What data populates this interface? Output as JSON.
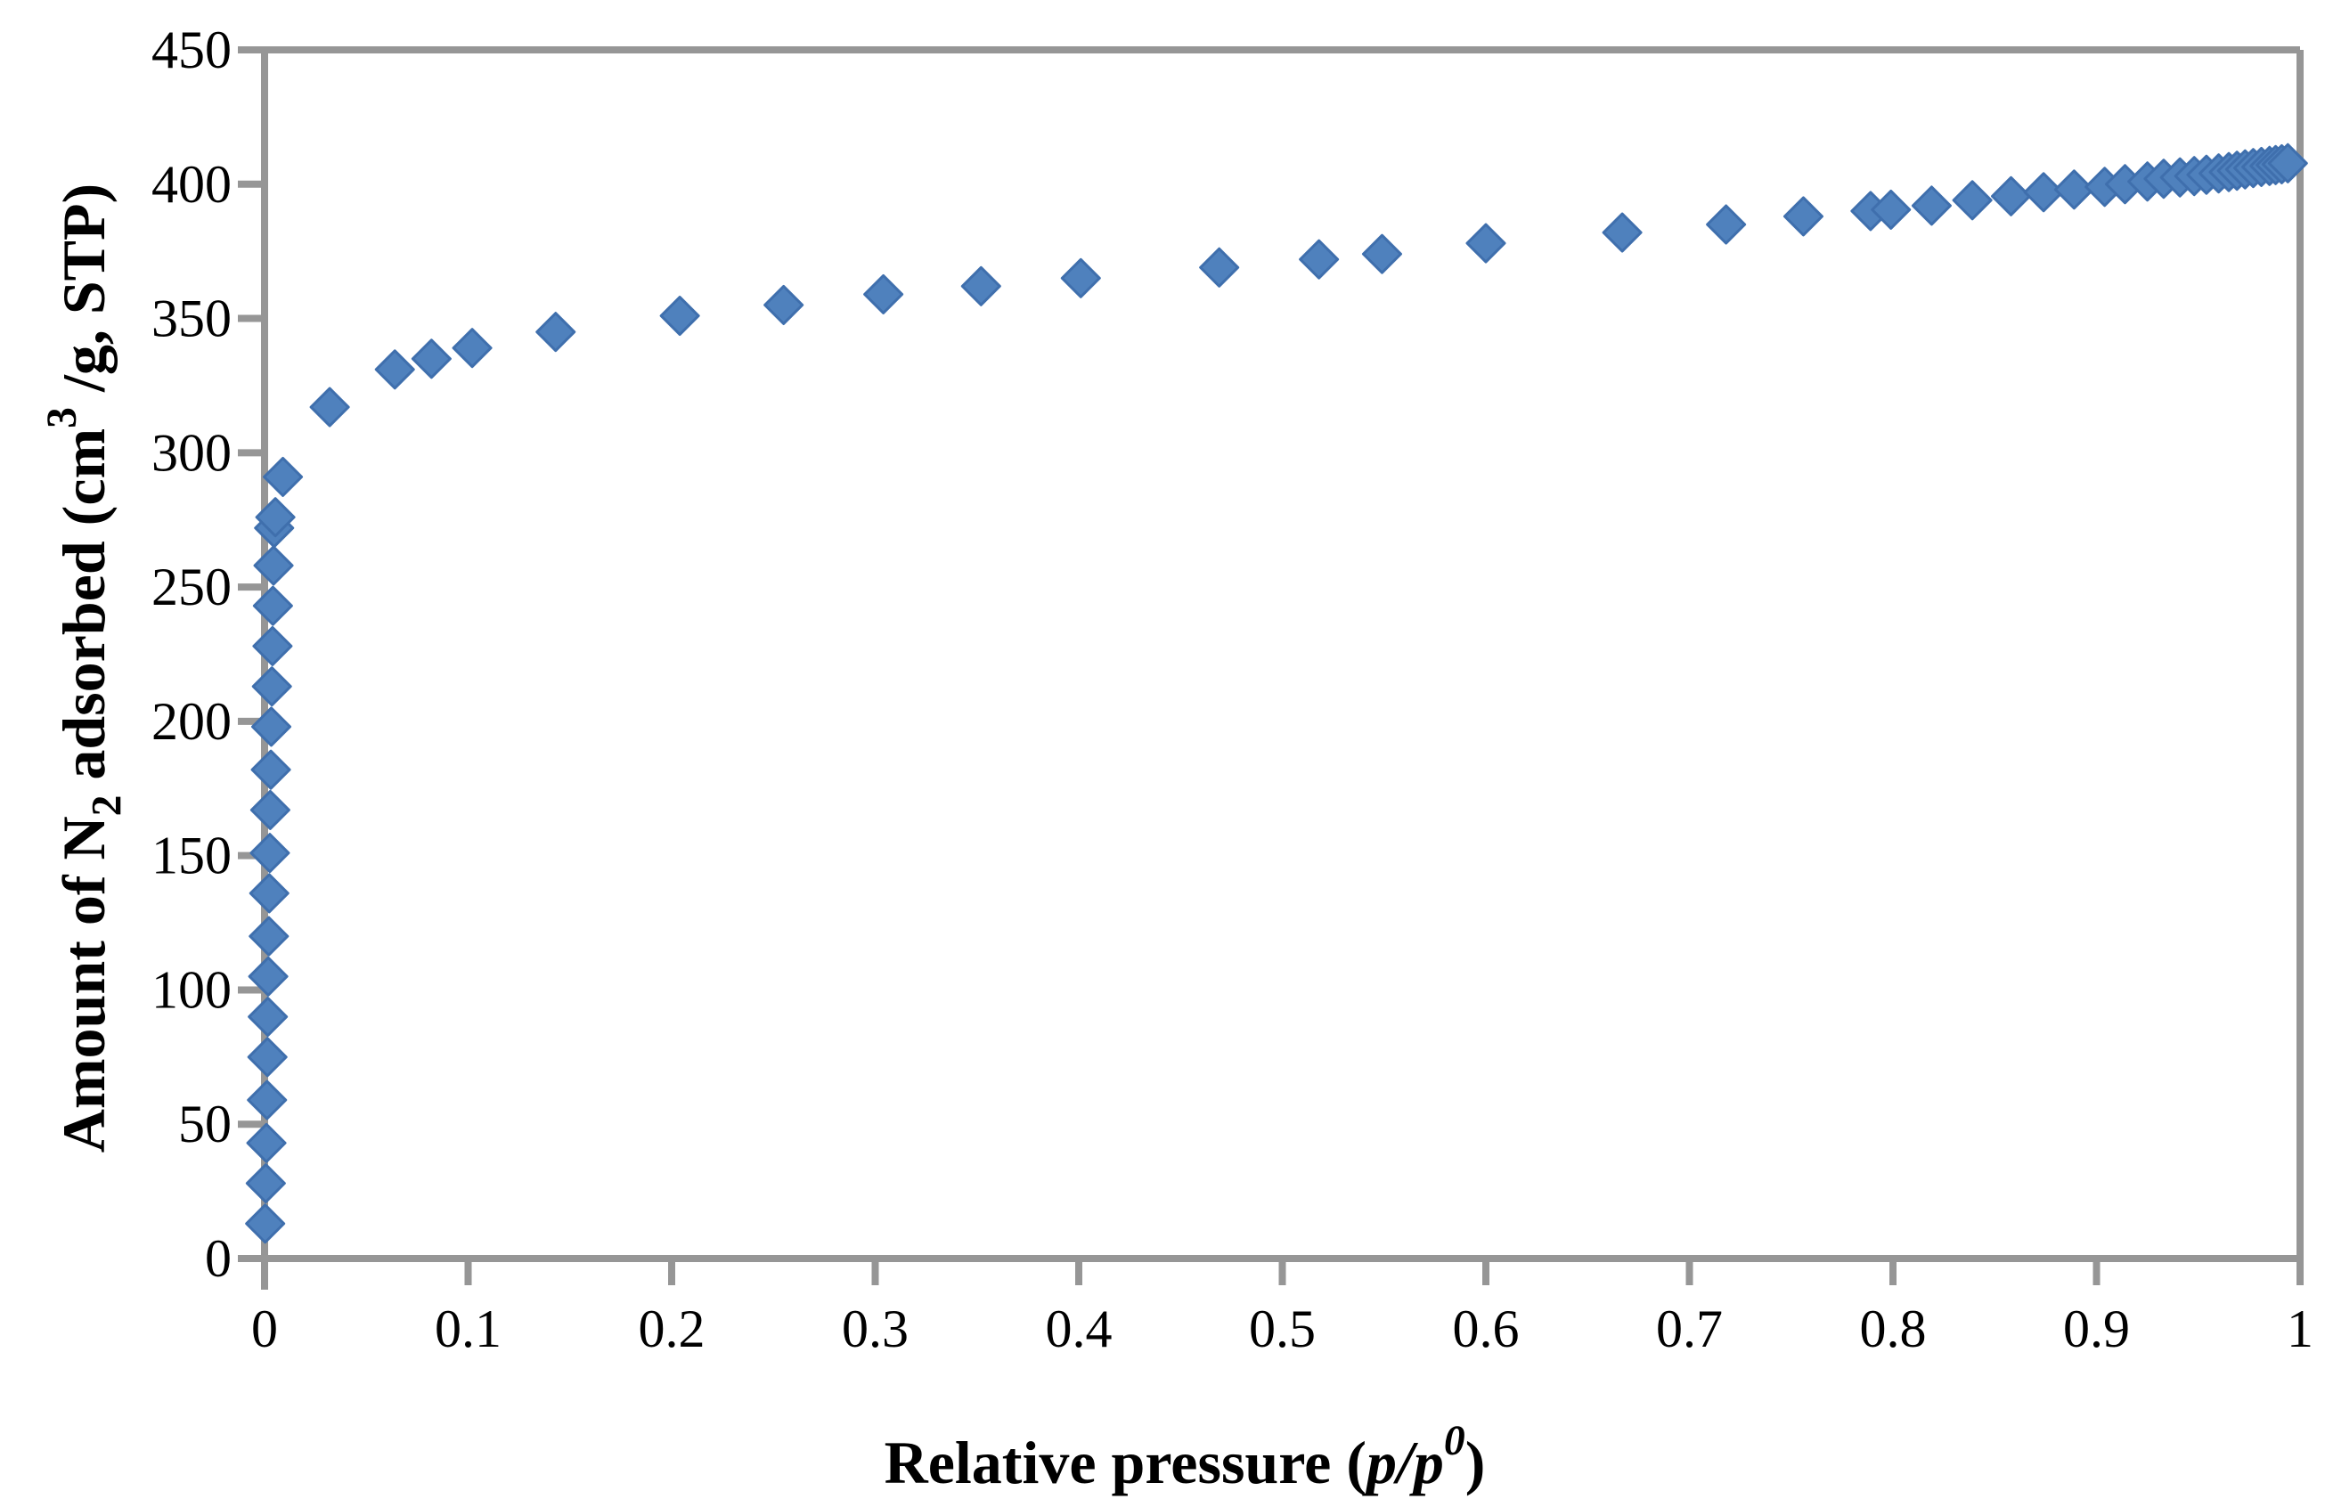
{
  "chart_data": {
    "type": "scatter",
    "title": "",
    "xlabel": "Relative pressure (p/p0)",
    "ylabel": "Amount of N2 adsorbed (cm3 /g, STP)",
    "xlabel_parts": {
      "prefix": "Relative pressure (",
      "italic_body": "p/p",
      "superscript": "0",
      "suffix": ")"
    },
    "ylabel_parts": {
      "part1": "Amount of N",
      "subscript": "2",
      "part2": " adsorbed  (cm",
      "superscript": "3",
      "part3": " /g, STP)"
    },
    "xlim": [
      0,
      1
    ],
    "ylim": [
      0,
      450
    ],
    "x_tick_labels": [
      "0",
      "0.1",
      "0.2",
      "0.3",
      "0.4",
      "0.5",
      "0.6",
      "0.7",
      "0.8",
      "0.9",
      "1"
    ],
    "x_tick_values": [
      0,
      0.1,
      0.2,
      0.3,
      0.4,
      0.5,
      0.6,
      0.7,
      0.8,
      0.9,
      1
    ],
    "y_tick_labels": [
      "0",
      "50",
      "100",
      "150",
      "200",
      "250",
      "300",
      "350",
      "400",
      "450"
    ],
    "y_tick_values": [
      0,
      50,
      100,
      150,
      200,
      250,
      300,
      350,
      400,
      450
    ],
    "grid": false,
    "legend": "none",
    "marker_shape": "diamond",
    "colors": {
      "marker_fill": "#4f81bd",
      "marker_stroke": "#3f6fad",
      "axis": "#969696",
      "text": "#000000",
      "background": "#ffffff"
    },
    "points": [
      [
        0.0003,
        13
      ],
      [
        0.0006,
        28
      ],
      [
        0.0009,
        43
      ],
      [
        0.0012,
        59
      ],
      [
        0.0014,
        75
      ],
      [
        0.0016,
        90
      ],
      [
        0.0018,
        105
      ],
      [
        0.0021,
        120
      ],
      [
        0.0023,
        136
      ],
      [
        0.0026,
        151
      ],
      [
        0.0028,
        167
      ],
      [
        0.0031,
        182
      ],
      [
        0.0033,
        198
      ],
      [
        0.0036,
        213
      ],
      [
        0.0039,
        228
      ],
      [
        0.0041,
        243
      ],
      [
        0.0044,
        258
      ],
      [
        0.0047,
        272
      ],
      [
        0.0053,
        276
      ],
      [
        0.009,
        291
      ],
      [
        0.032,
        317
      ],
      [
        0.064,
        331
      ],
      [
        0.082,
        335
      ],
      [
        0.102,
        339
      ],
      [
        0.143,
        345
      ],
      [
        0.204,
        351
      ],
      [
        0.255,
        355
      ],
      [
        0.304,
        359
      ],
      [
        0.352,
        362
      ],
      [
        0.401,
        365
      ],
      [
        0.469,
        369
      ],
      [
        0.518,
        372
      ],
      [
        0.549,
        374
      ],
      [
        0.6,
        378
      ],
      [
        0.667,
        382
      ],
      [
        0.718,
        385
      ],
      [
        0.756,
        388
      ],
      [
        0.789,
        390
      ],
      [
        0.799,
        390.5
      ],
      [
        0.819,
        392
      ],
      [
        0.839,
        394
      ],
      [
        0.858,
        395.5
      ],
      [
        0.874,
        397
      ],
      [
        0.889,
        398
      ],
      [
        0.904,
        399
      ],
      [
        0.914,
        400
      ],
      [
        0.925,
        401
      ],
      [
        0.933,
        402
      ],
      [
        0.941,
        402.5
      ],
      [
        0.948,
        403
      ],
      [
        0.954,
        403.5
      ],
      [
        0.96,
        404
      ],
      [
        0.965,
        404.5
      ],
      [
        0.969,
        405
      ],
      [
        0.973,
        405.5
      ],
      [
        0.977,
        406
      ],
      [
        0.981,
        406.4
      ],
      [
        0.985,
        406.8
      ],
      [
        0.988,
        407.1
      ],
      [
        0.991,
        407.4
      ],
      [
        0.994,
        407.8
      ]
    ]
  }
}
